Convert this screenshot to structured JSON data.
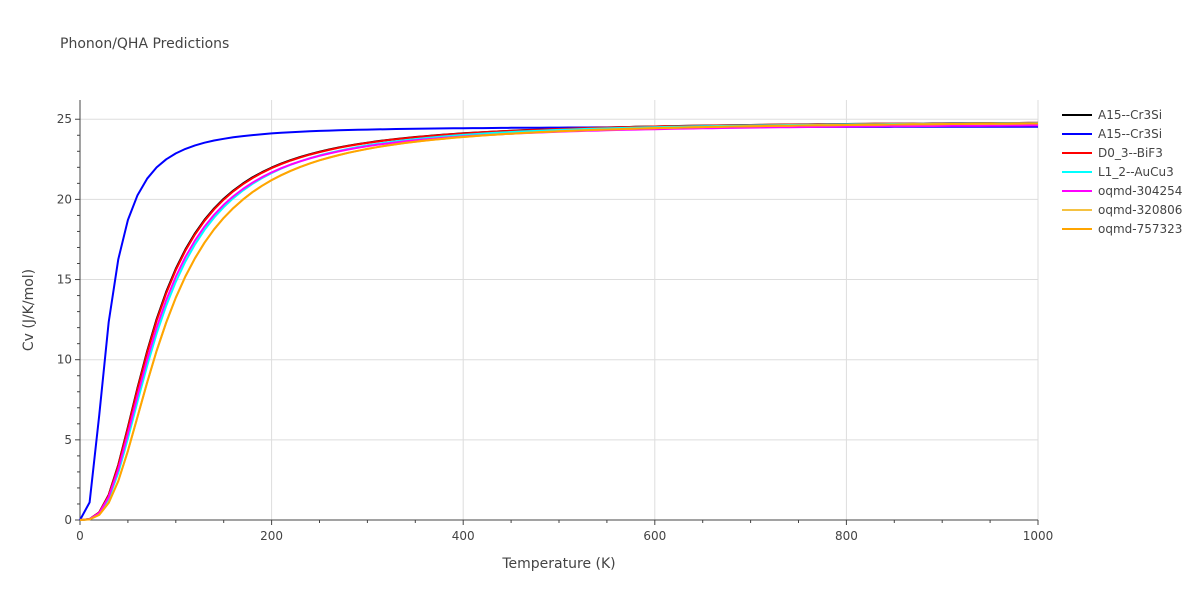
{
  "chart_data": {
    "type": "line",
    "title": "Phonon/QHA Predictions",
    "xlabel": "Temperature (K)",
    "ylabel": "Cv (J/K/mol)",
    "xlim": [
      0,
      1000
    ],
    "ylim": [
      0,
      26.2
    ],
    "x_ticks": [
      0,
      200,
      400,
      600,
      800,
      1000
    ],
    "y_ticks": [
      0,
      5,
      10,
      15,
      20,
      25
    ],
    "grid": true,
    "legend_position": "right",
    "series": [
      {
        "name": "A15--Cr3Si",
        "color": "#000000",
        "theta": 320,
        "asymptote": 24.9
      },
      {
        "name": "A15--Cr3Si",
        "color": "#0000ff",
        "theta": 120,
        "asymptote": 24.55
      },
      {
        "name": "D0_3--BiF3",
        "color": "#ff0000",
        "theta": 322,
        "asymptote": 24.9
      },
      {
        "name": "L1_2--AuCu3",
        "color": "#00ffff",
        "theta": 340,
        "asymptote": 24.9
      },
      {
        "name": "oqmd-304254",
        "color": "#ff00ff",
        "theta": 330,
        "asymptote": 24.75
      },
      {
        "name": "oqmd-320806",
        "color": "#f5c242",
        "theta": 365,
        "asymptote": 24.9
      },
      {
        "name": "oqmd-757323",
        "color": "#ffa500",
        "theta": 365,
        "asymptote": 24.9
      }
    ]
  }
}
